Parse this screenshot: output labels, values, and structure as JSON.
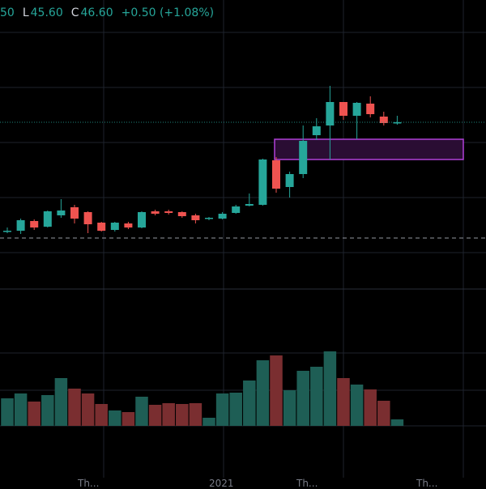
{
  "legend": {
    "open_value": "50",
    "low_key": "L",
    "low_value": "45.60",
    "close_key": "C",
    "close_value": "46.60",
    "change": "+0.50 (+1.08%)"
  },
  "colors": {
    "up": "#26a69a",
    "down": "#ef5350",
    "up_volume": "#1e5e55",
    "down_volume": "#7a2e30",
    "zone_fill": "#2a0d33",
    "zone_stroke": "#b040d8",
    "grid": "#1e222d",
    "dashed_line": "#9598a1",
    "last_price_line": "#26a69a"
  },
  "x_axis": {
    "labels": [
      "Th...",
      "2021",
      "Th...",
      "Th..."
    ]
  },
  "chart_data": {
    "type": "candlestick",
    "price_ylim": [
      30,
      60
    ],
    "candles": [
      {
        "o": 37.4,
        "h": 37.9,
        "l": 37.2,
        "c": 37.5
      },
      {
        "o": 37.5,
        "h": 39.0,
        "l": 37.1,
        "c": 38.8
      },
      {
        "o": 38.7,
        "h": 38.9,
        "l": 37.6,
        "c": 37.9
      },
      {
        "o": 38.0,
        "h": 40.0,
        "l": 37.9,
        "c": 39.9
      },
      {
        "o": 39.4,
        "h": 41.4,
        "l": 39.1,
        "c": 40.0
      },
      {
        "o": 40.4,
        "h": 40.7,
        "l": 38.4,
        "c": 39.0
      },
      {
        "o": 39.8,
        "h": 39.9,
        "l": 37.2,
        "c": 38.3
      },
      {
        "o": 38.5,
        "h": 38.6,
        "l": 37.4,
        "c": 37.5
      },
      {
        "o": 37.6,
        "h": 38.6,
        "l": 37.4,
        "c": 38.5
      },
      {
        "o": 38.4,
        "h": 38.6,
        "l": 37.7,
        "c": 37.9
      },
      {
        "o": 37.9,
        "h": 39.9,
        "l": 37.8,
        "c": 39.8
      },
      {
        "o": 39.9,
        "h": 40.1,
        "l": 39.4,
        "c": 39.6
      },
      {
        "o": 39.9,
        "h": 40.1,
        "l": 39.5,
        "c": 39.7
      },
      {
        "o": 39.8,
        "h": 39.9,
        "l": 39.1,
        "c": 39.3
      },
      {
        "o": 39.4,
        "h": 39.6,
        "l": 38.4,
        "c": 38.8
      },
      {
        "o": 39.0,
        "h": 39.2,
        "l": 38.8,
        "c": 39.1
      },
      {
        "o": 39.0,
        "h": 39.8,
        "l": 38.9,
        "c": 39.6
      },
      {
        "o": 39.7,
        "h": 40.7,
        "l": 39.6,
        "c": 40.5
      },
      {
        "o": 40.6,
        "h": 42.1,
        "l": 40.5,
        "c": 40.8
      },
      {
        "o": 40.7,
        "h": 46.4,
        "l": 40.6,
        "c": 46.3
      },
      {
        "o": 46.2,
        "h": 46.6,
        "l": 42.2,
        "c": 42.7
      },
      {
        "o": 42.9,
        "h": 44.8,
        "l": 41.6,
        "c": 44.5
      },
      {
        "o": 44.5,
        "h": 50.5,
        "l": 44.0,
        "c": 48.6
      },
      {
        "o": 49.3,
        "h": 51.4,
        "l": 48.7,
        "c": 50.4
      },
      {
        "o": 50.5,
        "h": 55.4,
        "l": 46.3,
        "c": 53.4
      },
      {
        "o": 53.4,
        "h": 53.4,
        "l": 51.2,
        "c": 51.7
      },
      {
        "o": 51.7,
        "h": 53.4,
        "l": 48.8,
        "c": 53.3
      },
      {
        "o": 53.2,
        "h": 54.1,
        "l": 51.5,
        "c": 51.9
      },
      {
        "o": 51.6,
        "h": 52.2,
        "l": 50.5,
        "c": 50.8
      },
      {
        "o": 50.8,
        "h": 51.7,
        "l": 50.6,
        "c": 50.9
      }
    ],
    "volume": [
      34,
      40,
      30,
      38,
      59,
      46,
      40,
      27,
      19,
      17,
      36,
      26,
      28,
      27,
      28,
      10,
      40,
      41,
      56,
      81,
      87,
      44,
      68,
      73,
      92,
      59,
      51,
      45,
      31,
      8
    ],
    "volume_ylim": [
      0,
      100
    ],
    "zone": {
      "x_from_candle": 20,
      "y_high": 48.8,
      "y_low": 46.3
    },
    "last_price": 50.9,
    "dashed_level": 36.6
  }
}
